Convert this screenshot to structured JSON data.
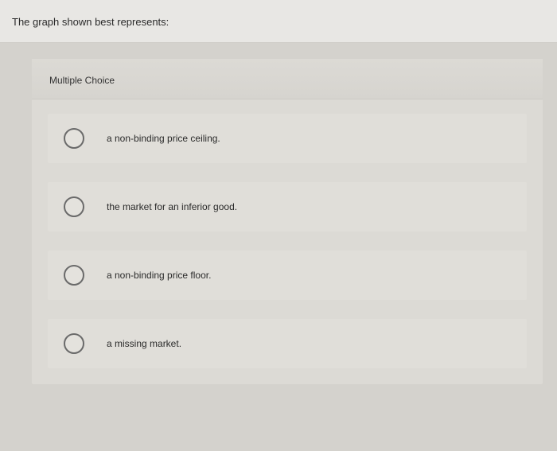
{
  "question": {
    "prompt": "The graph shown best represents:"
  },
  "multipleChoice": {
    "header": "Multiple Choice",
    "options": [
      {
        "label": "a non-binding price ceiling."
      },
      {
        "label": "the market for an inferior good."
      },
      {
        "label": "a non-binding price floor."
      },
      {
        "label": "a missing market."
      }
    ]
  },
  "colors": {
    "page_bg": "#d4d2cd",
    "header_bg": "#e8e7e4",
    "panel_bg": "#dcdad5",
    "option_bg": "#e0ded9",
    "radio_border": "#6a6a6a",
    "text": "#2a2a2a"
  }
}
